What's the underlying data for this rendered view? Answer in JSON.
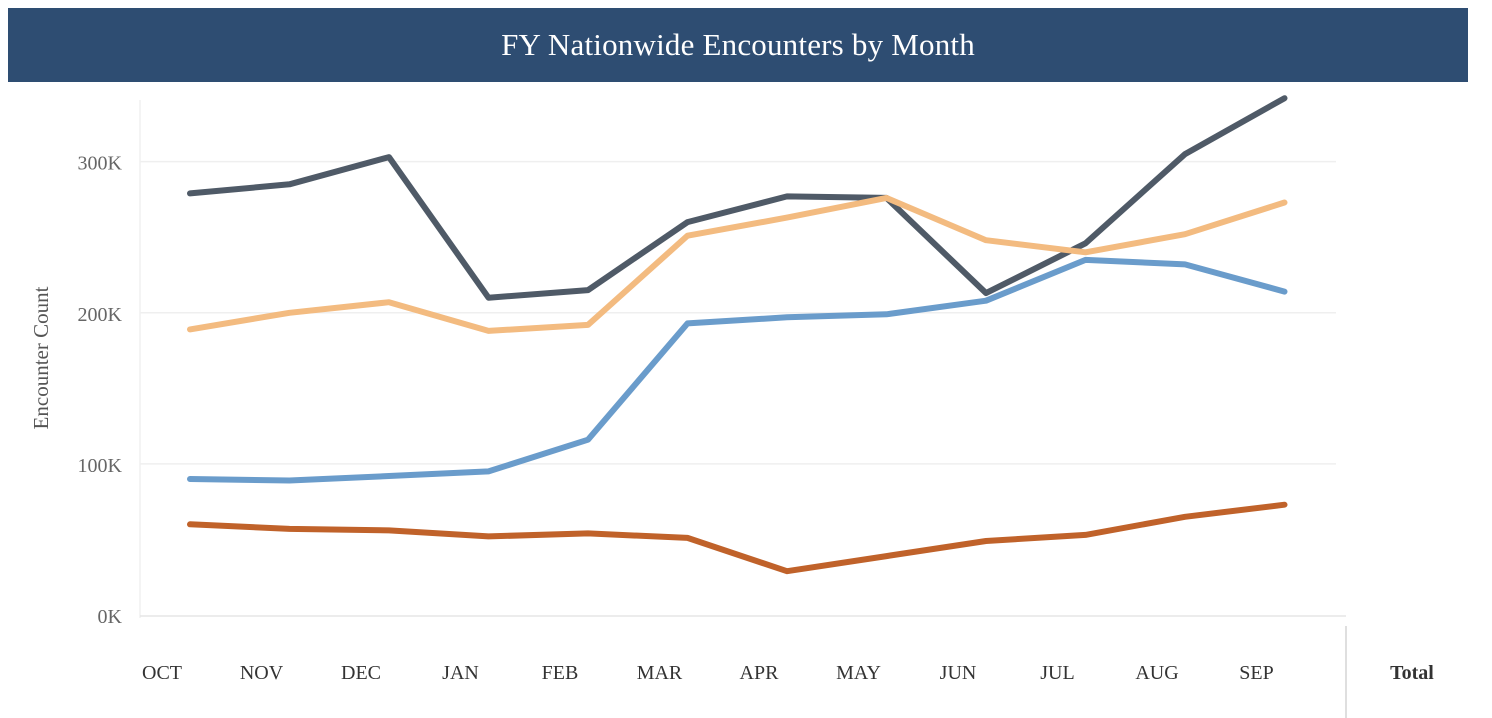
{
  "header": {
    "title": "FY Nationwide Encounters by Month"
  },
  "chart_data": {
    "type": "line",
    "title": "FY Nationwide Encounters by Month",
    "ylabel": "Encounter Count",
    "xlabel": "",
    "x": [
      "OCT",
      "NOV",
      "DEC",
      "JAN",
      "FEB",
      "MAR",
      "APR",
      "MAY",
      "JUN",
      "JUL",
      "AUG",
      "SEP"
    ],
    "extra_column_label": "Total",
    "y_ticks": [
      {
        "value": 0,
        "label": "0K"
      },
      {
        "value": 100000,
        "label": "100K"
      },
      {
        "value": 200000,
        "label": "200K"
      },
      {
        "value": 300000,
        "label": "300K"
      }
    ],
    "ylim": [
      0,
      360000
    ],
    "grid": true,
    "series": [
      {
        "color": "#4f5a67",
        "values": [
          279000,
          285000,
          303000,
          210000,
          215000,
          260000,
          277000,
          276000,
          213000,
          246000,
          305000,
          342000
        ]
      },
      {
        "color": "#f3bb80",
        "values": [
          189000,
          200000,
          207000,
          188000,
          192000,
          251000,
          263000,
          276000,
          248000,
          240000,
          252000,
          273000
        ]
      },
      {
        "color": "#6a9ccb",
        "values": [
          90000,
          89000,
          92000,
          95000,
          116000,
          193000,
          197000,
          199000,
          208000,
          235000,
          232000,
          214000
        ]
      },
      {
        "color": "#c0622a",
        "values": [
          60000,
          57000,
          56000,
          52000,
          54000,
          51000,
          29000,
          39000,
          49000,
          53000,
          65000,
          73000
        ]
      }
    ]
  }
}
